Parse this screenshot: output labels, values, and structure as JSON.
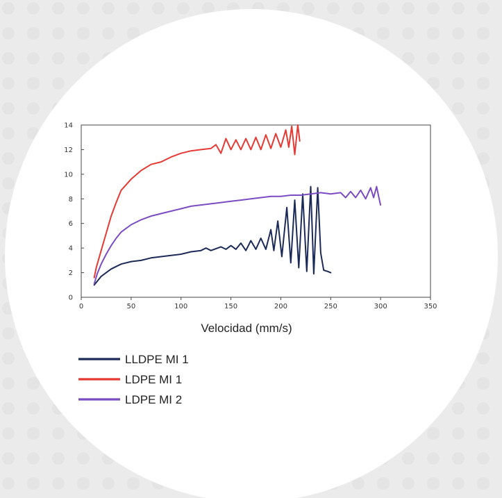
{
  "chart_data": {
    "type": "line",
    "title": "",
    "xlabel": "Velocidad (mm/s)",
    "ylabel": "",
    "xlim": [
      0,
      350
    ],
    "ylim": [
      0,
      14
    ],
    "xticks": [
      0,
      50,
      100,
      150,
      200,
      250,
      300,
      350
    ],
    "yticks": [
      0,
      2,
      4,
      6,
      8,
      10,
      12,
      14
    ],
    "grid": false,
    "legend_position": "bottom-left",
    "series": [
      {
        "name": "LLDPE MI 1",
        "color": "#1b2a57",
        "points": [
          [
            13,
            1.0
          ],
          [
            16,
            1.3
          ],
          [
            20,
            1.7
          ],
          [
            25,
            2.0
          ],
          [
            30,
            2.3
          ],
          [
            35,
            2.5
          ],
          [
            40,
            2.7
          ],
          [
            50,
            2.9
          ],
          [
            60,
            3.0
          ],
          [
            70,
            3.2
          ],
          [
            80,
            3.3
          ],
          [
            90,
            3.4
          ],
          [
            100,
            3.5
          ],
          [
            110,
            3.7
          ],
          [
            120,
            3.8
          ],
          [
            125,
            4.0
          ],
          [
            130,
            3.8
          ],
          [
            140,
            4.1
          ],
          [
            145,
            3.9
          ],
          [
            150,
            4.2
          ],
          [
            155,
            3.9
          ],
          [
            160,
            4.4
          ],
          [
            165,
            3.8
          ],
          [
            170,
            4.6
          ],
          [
            175,
            3.9
          ],
          [
            180,
            4.8
          ],
          [
            185,
            3.9
          ],
          [
            190,
            5.5
          ],
          [
            193,
            3.8
          ],
          [
            197,
            6.2
          ],
          [
            201,
            3.3
          ],
          [
            206,
            7.3
          ],
          [
            210,
            2.8
          ],
          [
            214,
            7.9
          ],
          [
            218,
            2.4
          ],
          [
            222,
            8.4
          ],
          [
            226,
            2.1
          ],
          [
            230,
            9.0
          ],
          [
            233,
            1.9
          ],
          [
            237,
            8.9
          ],
          [
            240,
            3.6
          ],
          [
            243,
            2.2
          ],
          [
            247,
            2.1
          ],
          [
            250,
            2.0
          ]
        ]
      },
      {
        "name": "LDPE MI 1",
        "color": "#e53a33",
        "points": [
          [
            13,
            1.6
          ],
          [
            15,
            2.4
          ],
          [
            20,
            3.8
          ],
          [
            25,
            5.2
          ],
          [
            30,
            6.6
          ],
          [
            35,
            7.7
          ],
          [
            40,
            8.7
          ],
          [
            50,
            9.6
          ],
          [
            60,
            10.3
          ],
          [
            70,
            10.8
          ],
          [
            80,
            11.0
          ],
          [
            90,
            11.4
          ],
          [
            100,
            11.7
          ],
          [
            110,
            11.9
          ],
          [
            120,
            12.0
          ],
          [
            130,
            12.1
          ],
          [
            135,
            12.4
          ],
          [
            140,
            11.7
          ],
          [
            145,
            12.9
          ],
          [
            150,
            12.0
          ],
          [
            155,
            12.8
          ],
          [
            160,
            12.0
          ],
          [
            165,
            12.9
          ],
          [
            170,
            12.0
          ],
          [
            175,
            13.0
          ],
          [
            180,
            12.0
          ],
          [
            185,
            13.2
          ],
          [
            190,
            12.1
          ],
          [
            195,
            13.3
          ],
          [
            200,
            12.2
          ],
          [
            205,
            13.6
          ],
          [
            208,
            12.2
          ],
          [
            211,
            13.9
          ],
          [
            214,
            11.6
          ],
          [
            217,
            14.0
          ],
          [
            219,
            12.7
          ]
        ]
      },
      {
        "name": "LDPE MI 2",
        "color": "#7b4bc2",
        "points": [
          [
            13,
            1.1
          ],
          [
            16,
            1.9
          ],
          [
            20,
            2.7
          ],
          [
            25,
            3.5
          ],
          [
            30,
            4.2
          ],
          [
            35,
            4.8
          ],
          [
            40,
            5.3
          ],
          [
            50,
            5.9
          ],
          [
            60,
            6.3
          ],
          [
            70,
            6.6
          ],
          [
            80,
            6.8
          ],
          [
            90,
            7.0
          ],
          [
            100,
            7.2
          ],
          [
            110,
            7.4
          ],
          [
            120,
            7.5
          ],
          [
            130,
            7.6
          ],
          [
            140,
            7.7
          ],
          [
            150,
            7.8
          ],
          [
            160,
            7.9
          ],
          [
            170,
            8.0
          ],
          [
            180,
            8.1
          ],
          [
            190,
            8.2
          ],
          [
            200,
            8.2
          ],
          [
            210,
            8.3
          ],
          [
            220,
            8.3
          ],
          [
            230,
            8.4
          ],
          [
            240,
            8.5
          ],
          [
            250,
            8.4
          ],
          [
            260,
            8.5
          ],
          [
            265,
            8.1
          ],
          [
            270,
            8.6
          ],
          [
            275,
            8.1
          ],
          [
            280,
            8.7
          ],
          [
            285,
            8.0
          ],
          [
            290,
            8.9
          ],
          [
            293,
            8.1
          ],
          [
            296,
            9.0
          ],
          [
            298,
            8.2
          ],
          [
            300,
            7.5
          ]
        ]
      }
    ]
  }
}
